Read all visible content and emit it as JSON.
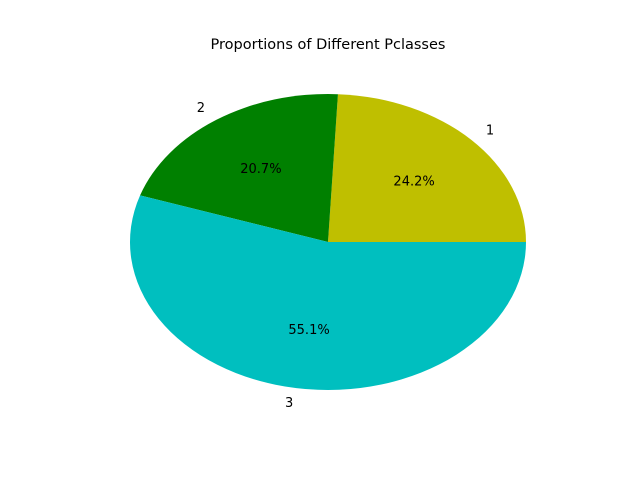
{
  "chart_data": {
    "type": "pie",
    "title": "Proportions of Different Pclasses",
    "labels": [
      "1",
      "2",
      "3"
    ],
    "values": [
      24.2,
      20.7,
      55.1
    ],
    "autopct_labels": [
      "24.2%",
      "20.7%",
      "55.1%"
    ],
    "colors": [
      "#bfbf00",
      "#008000",
      "#00bfbf"
    ],
    "start_angle_deg": 0,
    "direction": "counterclockwise"
  }
}
